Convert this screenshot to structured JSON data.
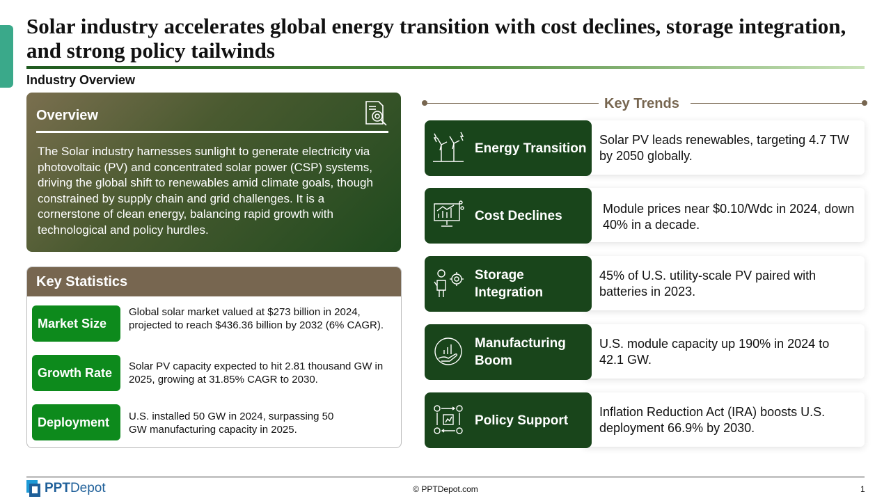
{
  "header": {
    "title": "Solar industry accelerates global energy transition with cost declines, storage integration, and strong policy tailwinds",
    "subtitle": "Industry Overview"
  },
  "overview": {
    "heading": "Overview",
    "icon": "document-search-icon",
    "text": "The Solar industry harnesses sunlight to generate electricity via photovoltaic (PV) and concentrated solar power (CSP) systems, driving the global shift to renewables amid climate goals, though constrained by supply chain and grid challenges. It is a cornerstone of clean energy, balancing rapid growth with technological and policy hurdles."
  },
  "key_statistics": {
    "heading": "Key Statistics",
    "items": [
      {
        "label": "Market Size",
        "text": "Global solar market valued at $273 billion in 2024, projected to reach $436.36 billion by 2032 (6% CAGR)."
      },
      {
        "label": "Growth Rate",
        "text": "Solar PV capacity expected to hit 2.81 thousand GW in 2025, growing at 31.85% CAGR to 2030."
      },
      {
        "label": "Deployment",
        "text": "U.S. installed 50 GW in 2024, surpassing 50 GW manufacturing capacity in 2025."
      }
    ]
  },
  "key_trends": {
    "heading": "Key Trends",
    "items": [
      {
        "label": "Energy Transition",
        "icon": "wind-turbine-icon",
        "text": "Solar PV leads renewables, targeting 4.7 TW by 2050 globally."
      },
      {
        "label": "Cost Declines",
        "icon": "chart-monitor-icon",
        "text": "Module prices near $0.10/Wdc in 2024, down 40% in a decade."
      },
      {
        "label": "Storage Integration",
        "icon": "engineer-gear-icon",
        "text": "45% of U.S. utility-scale PV paired with batteries in 2023."
      },
      {
        "label": "Manufacturing Boom",
        "icon": "growth-hand-icon",
        "text": "U.S. module capacity up 190% in 2024 to 42.1 GW."
      },
      {
        "label": "Policy Support",
        "icon": "process-gears-icon",
        "text": "Inflation Reduction Act (IRA) boosts U.S. deployment 66.9% by 2030."
      }
    ]
  },
  "footer": {
    "logo_bold": "PPT",
    "logo_rest": "Depot",
    "copyright": "© PPTDepot.com",
    "page_number": "1"
  },
  "colors": {
    "accent_teal": "#3aa98a",
    "dark_green": "#19451b",
    "badge_green": "#0d8a1c",
    "brown": "#776650"
  }
}
